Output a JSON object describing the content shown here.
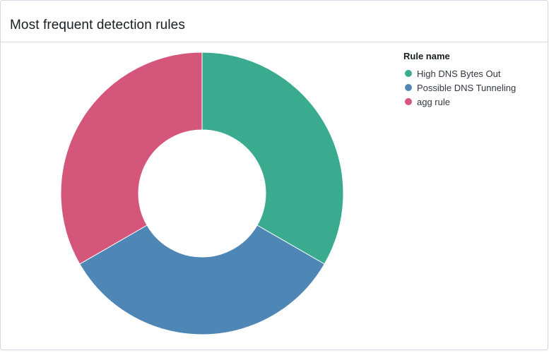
{
  "panel": {
    "title": "Most frequent detection rules"
  },
  "chart_data": {
    "type": "pie",
    "style": "donut",
    "title": "Most frequent detection rules",
    "legend_title": "Rule name",
    "legend_position": "top-right",
    "categories": [
      "High DNS Bytes Out",
      "Possible DNS Tunneling",
      "agg rule"
    ],
    "values": [
      1,
      1,
      1
    ],
    "colors": [
      "#3aab8f",
      "#4e87b5",
      "#d4577b"
    ]
  }
}
